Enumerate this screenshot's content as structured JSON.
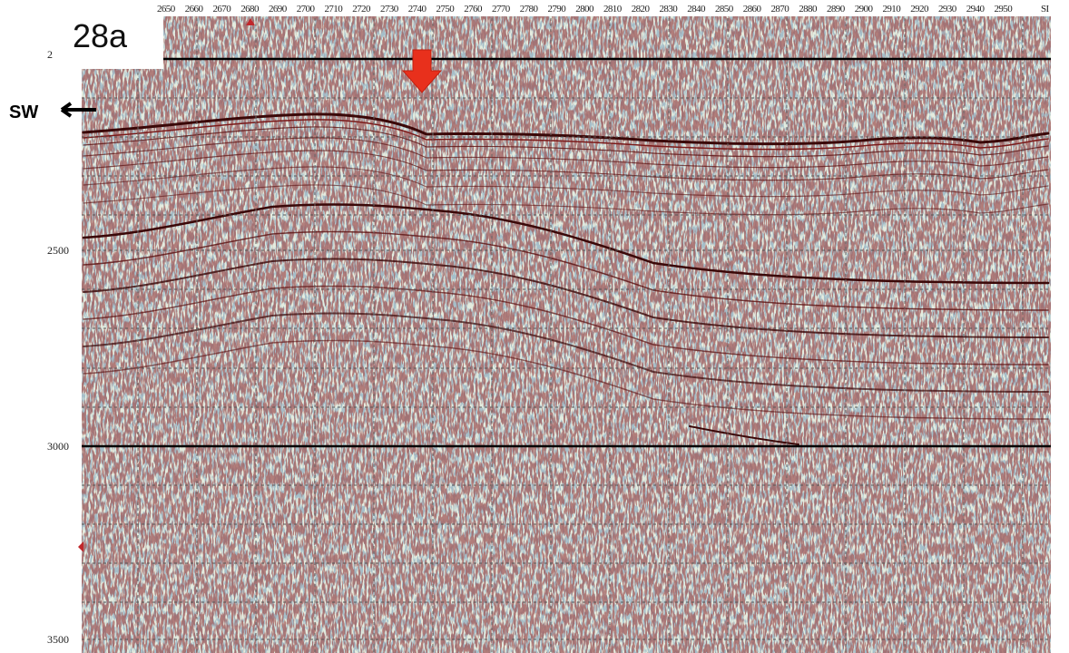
{
  "panel_label": "28a",
  "direction_label": "SW",
  "trace_labels": [
    "2650",
    "2660",
    "2670",
    "2680",
    "2690",
    "2700",
    "2710",
    "2720",
    "2730",
    "2740",
    "2750",
    "2760",
    "2770",
    "2780",
    "2790",
    "2800",
    "2810",
    "2820",
    "2830",
    "2840",
    "2850",
    "2860",
    "2870",
    "2880",
    "2890",
    "2900",
    "2910",
    "2920",
    "2930",
    "2940",
    "2950",
    "SI"
  ],
  "time_labels": [
    "2",
    "2500",
    "3000",
    "3500"
  ]
}
